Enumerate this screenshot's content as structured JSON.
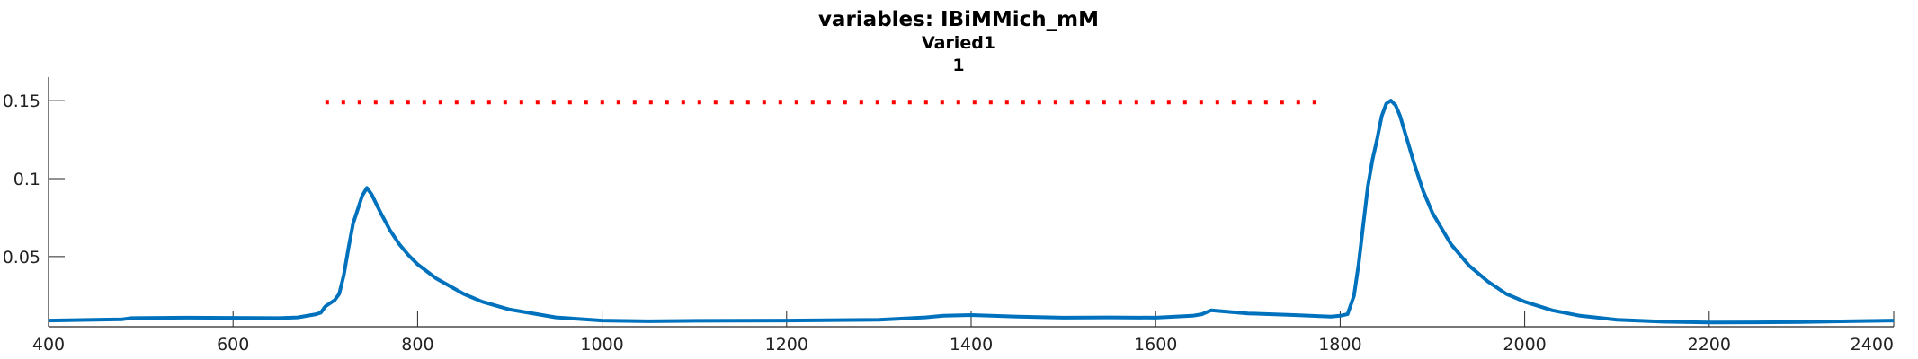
{
  "chart_data": {
    "type": "line",
    "title": [
      "variables: IBiMMich_mM",
      "Varied1",
      "1"
    ],
    "xlabel": "",
    "ylabel": "",
    "xlim": [
      400,
      2400
    ],
    "ylim": [
      0.005,
      0.165
    ],
    "xticks": [
      400,
      600,
      800,
      1000,
      1200,
      1400,
      1600,
      1800,
      2000,
      2200,
      2400
    ],
    "yticks": [
      0.05,
      0.1,
      0.15
    ],
    "ytick_labels": [
      "0.05",
      "0.1",
      "0.15"
    ],
    "grid": false,
    "legend": "none",
    "series": [
      {
        "color": "#0072BD",
        "style": "solid",
        "x": [
          400,
          450,
          480,
          490,
          550,
          600,
          650,
          670,
          690,
          695,
          700,
          710,
          715,
          720,
          725,
          730,
          735,
          740,
          745,
          750,
          760,
          770,
          780,
          790,
          800,
          820,
          850,
          870,
          900,
          950,
          1000,
          1050,
          1100,
          1200,
          1300,
          1350,
          1370,
          1400,
          1450,
          1500,
          1550,
          1600,
          1640,
          1650,
          1660,
          1680,
          1700,
          1750,
          1790,
          1800,
          1808,
          1815,
          1820,
          1825,
          1830,
          1835,
          1840,
          1845,
          1850,
          1855,
          1860,
          1865,
          1870,
          1875,
          1880,
          1890,
          1900,
          1920,
          1940,
          1960,
          1980,
          2000,
          2030,
          2060,
          2100,
          2150,
          2200,
          2250,
          2300,
          2350,
          2400
        ],
        "y": [
          0.009,
          0.0095,
          0.0098,
          0.0105,
          0.0108,
          0.0107,
          0.0105,
          0.011,
          0.013,
          0.014,
          0.018,
          0.022,
          0.026,
          0.038,
          0.055,
          0.071,
          0.08,
          0.089,
          0.094,
          0.09,
          0.078,
          0.067,
          0.058,
          0.051,
          0.045,
          0.036,
          0.026,
          0.021,
          0.016,
          0.011,
          0.009,
          0.0085,
          0.0088,
          0.009,
          0.0095,
          0.011,
          0.012,
          0.0125,
          0.0115,
          0.0108,
          0.011,
          0.0108,
          0.012,
          0.013,
          0.0155,
          0.0145,
          0.0135,
          0.0125,
          0.0115,
          0.012,
          0.013,
          0.025,
          0.045,
          0.07,
          0.095,
          0.112,
          0.125,
          0.14,
          0.148,
          0.15,
          0.147,
          0.14,
          0.13,
          0.12,
          0.11,
          0.092,
          0.078,
          0.058,
          0.044,
          0.034,
          0.026,
          0.021,
          0.0155,
          0.012,
          0.0095,
          0.0082,
          0.0077,
          0.0078,
          0.008,
          0.0085,
          0.009
        ]
      },
      {
        "color": "#FF0000",
        "style": "dotted",
        "x": [
          700,
          1780
        ],
        "y": [
          0.149,
          0.149
        ]
      }
    ]
  }
}
